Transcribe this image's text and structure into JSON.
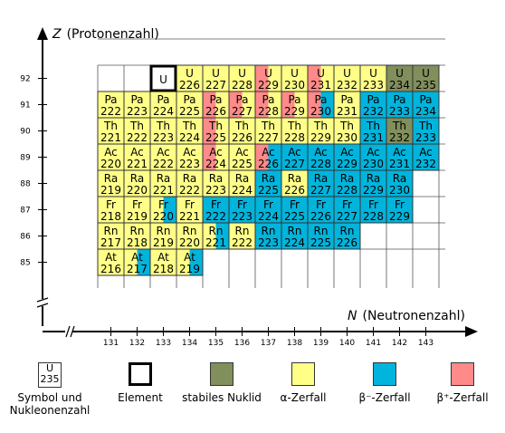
{
  "axes": {
    "y_title_symbol": "Z",
    "y_title_text": "(Protonenzahl)",
    "x_title_symbol": "N",
    "x_title_text": "(Neutronenzahl)",
    "x_ticks": [
      "131",
      "132",
      "133",
      "134",
      "135",
      "136",
      "137",
      "138",
      "139",
      "140",
      "141",
      "142",
      "143"
    ],
    "y_ticks": [
      "92",
      "91",
      "90",
      "89",
      "88",
      "87",
      "86",
      "85"
    ]
  },
  "colors": {
    "stable": "#808f5c",
    "alpha": "#ffff88",
    "beta_minus": "#00b4dc",
    "beta_plus": "#ff8a8a",
    "axis": "#000000"
  },
  "chart_data": {
    "type": "table",
    "rows": [
      {
        "z": 92,
        "symbol": "U",
        "cells": [
          {
            "n": 134,
            "mass": "226",
            "decay": [
              "alpha"
            ]
          },
          {
            "n": 135,
            "mass": "227",
            "decay": [
              "alpha"
            ]
          },
          {
            "n": 136,
            "mass": "228",
            "decay": [
              "alpha"
            ]
          },
          {
            "n": 137,
            "mass": "229",
            "decay": [
              "beta_plus",
              "alpha"
            ]
          },
          {
            "n": 138,
            "mass": "230",
            "decay": [
              "alpha"
            ]
          },
          {
            "n": 139,
            "mass": "231",
            "decay": [
              "beta_plus",
              "alpha"
            ]
          },
          {
            "n": 140,
            "mass": "232",
            "decay": [
              "alpha"
            ]
          },
          {
            "n": 141,
            "mass": "233",
            "decay": [
              "alpha"
            ]
          },
          {
            "n": 142,
            "mass": "234",
            "decay": [
              "stable"
            ]
          },
          {
            "n": 143,
            "mass": "235",
            "decay": [
              "stable"
            ]
          }
        ]
      },
      {
        "z": 91,
        "symbol": "Pa",
        "cells": [
          {
            "n": 131,
            "mass": "222",
            "decay": [
              "alpha"
            ]
          },
          {
            "n": 132,
            "mass": "223",
            "decay": [
              "alpha"
            ]
          },
          {
            "n": 133,
            "mass": "224",
            "decay": [
              "alpha"
            ]
          },
          {
            "n": 134,
            "mass": "225",
            "decay": [
              "alpha"
            ]
          },
          {
            "n": 135,
            "mass": "226",
            "decay": [
              "beta_plus",
              "alpha"
            ]
          },
          {
            "n": 136,
            "mass": "227",
            "decay": [
              "beta_plus",
              "alpha"
            ]
          },
          {
            "n": 137,
            "mass": "228",
            "decay": [
              "beta_plus",
              "alpha"
            ]
          },
          {
            "n": 138,
            "mass": "229",
            "decay": [
              "beta_plus",
              "alpha"
            ]
          },
          {
            "n": 139,
            "mass": "230",
            "decay": [
              "beta_plus",
              "beta_minus"
            ]
          },
          {
            "n": 140,
            "mass": "231",
            "decay": [
              "alpha"
            ]
          },
          {
            "n": 141,
            "mass": "232",
            "decay": [
              "beta_minus"
            ]
          },
          {
            "n": 142,
            "mass": "233",
            "decay": [
              "beta_minus"
            ]
          },
          {
            "n": 143,
            "mass": "234",
            "decay": [
              "beta_minus"
            ]
          }
        ]
      },
      {
        "z": 90,
        "symbol": "Th",
        "cells": [
          {
            "n": 131,
            "mass": "221",
            "decay": [
              "alpha"
            ]
          },
          {
            "n": 132,
            "mass": "222",
            "decay": [
              "alpha"
            ]
          },
          {
            "n": 133,
            "mass": "223",
            "decay": [
              "alpha"
            ]
          },
          {
            "n": 134,
            "mass": "224",
            "decay": [
              "alpha"
            ]
          },
          {
            "n": 135,
            "mass": "225",
            "decay": [
              "beta_plus",
              "alpha"
            ]
          },
          {
            "n": 136,
            "mass": "226",
            "decay": [
              "alpha"
            ]
          },
          {
            "n": 137,
            "mass": "227",
            "decay": [
              "alpha"
            ]
          },
          {
            "n": 138,
            "mass": "228",
            "decay": [
              "alpha"
            ]
          },
          {
            "n": 139,
            "mass": "229",
            "decay": [
              "alpha"
            ]
          },
          {
            "n": 140,
            "mass": "230",
            "decay": [
              "alpha"
            ]
          },
          {
            "n": 141,
            "mass": "231",
            "decay": [
              "beta_minus"
            ]
          },
          {
            "n": 142,
            "mass": "232",
            "decay": [
              "stable"
            ]
          },
          {
            "n": 143,
            "mass": "233",
            "decay": [
              "beta_minus"
            ]
          }
        ]
      },
      {
        "z": 89,
        "symbol": "Ac",
        "cells": [
          {
            "n": 131,
            "mass": "220",
            "decay": [
              "alpha"
            ]
          },
          {
            "n": 132,
            "mass": "221",
            "decay": [
              "alpha"
            ]
          },
          {
            "n": 133,
            "mass": "222",
            "decay": [
              "alpha"
            ]
          },
          {
            "n": 134,
            "mass": "223",
            "decay": [
              "alpha"
            ]
          },
          {
            "n": 135,
            "mass": "224",
            "decay": [
              "beta_plus",
              "alpha"
            ]
          },
          {
            "n": 136,
            "mass": "225",
            "decay": [
              "alpha"
            ]
          },
          {
            "n": 137,
            "mass": "226",
            "decay": [
              "beta_plus",
              "beta_minus"
            ]
          },
          {
            "n": 138,
            "mass": "227",
            "decay": [
              "beta_minus"
            ]
          },
          {
            "n": 139,
            "mass": "228",
            "decay": [
              "beta_minus"
            ]
          },
          {
            "n": 140,
            "mass": "229",
            "decay": [
              "beta_minus"
            ]
          },
          {
            "n": 141,
            "mass": "230",
            "decay": [
              "beta_minus"
            ]
          },
          {
            "n": 142,
            "mass": "231",
            "decay": [
              "beta_minus"
            ]
          },
          {
            "n": 143,
            "mass": "232",
            "decay": [
              "beta_minus"
            ]
          }
        ]
      },
      {
        "z": 88,
        "symbol": "Ra",
        "cells": [
          {
            "n": 131,
            "mass": "219",
            "decay": [
              "alpha"
            ]
          },
          {
            "n": 132,
            "mass": "220",
            "decay": [
              "alpha"
            ]
          },
          {
            "n": 133,
            "mass": "221",
            "decay": [
              "alpha"
            ]
          },
          {
            "n": 134,
            "mass": "222",
            "decay": [
              "alpha"
            ]
          },
          {
            "n": 135,
            "mass": "223",
            "decay": [
              "alpha"
            ]
          },
          {
            "n": 136,
            "mass": "224",
            "decay": [
              "alpha"
            ]
          },
          {
            "n": 137,
            "mass": "225",
            "decay": [
              "beta_minus"
            ]
          },
          {
            "n": 138,
            "mass": "226",
            "decay": [
              "alpha"
            ]
          },
          {
            "n": 139,
            "mass": "227",
            "decay": [
              "beta_minus"
            ]
          },
          {
            "n": 140,
            "mass": "228",
            "decay": [
              "beta_minus"
            ]
          },
          {
            "n": 141,
            "mass": "229",
            "decay": [
              "beta_minus"
            ]
          },
          {
            "n": 142,
            "mass": "230",
            "decay": [
              "beta_minus"
            ]
          }
        ]
      },
      {
        "z": 87,
        "symbol": "Fr",
        "cells": [
          {
            "n": 131,
            "mass": "218",
            "decay": [
              "alpha"
            ]
          },
          {
            "n": 132,
            "mass": "219",
            "decay": [
              "alpha"
            ]
          },
          {
            "n": 133,
            "mass": "220",
            "decay": [
              "alpha",
              "beta_minus"
            ]
          },
          {
            "n": 134,
            "mass": "221",
            "decay": [
              "alpha"
            ]
          },
          {
            "n": 135,
            "mass": "222",
            "decay": [
              "beta_minus"
            ]
          },
          {
            "n": 136,
            "mass": "223",
            "decay": [
              "beta_minus"
            ]
          },
          {
            "n": 137,
            "mass": "224",
            "decay": [
              "beta_minus"
            ]
          },
          {
            "n": 138,
            "mass": "225",
            "decay": [
              "beta_minus"
            ]
          },
          {
            "n": 139,
            "mass": "226",
            "decay": [
              "beta_minus"
            ]
          },
          {
            "n": 140,
            "mass": "227",
            "decay": [
              "beta_minus"
            ]
          },
          {
            "n": 141,
            "mass": "228",
            "decay": [
              "beta_minus"
            ]
          },
          {
            "n": 142,
            "mass": "229",
            "decay": [
              "beta_minus"
            ]
          }
        ]
      },
      {
        "z": 86,
        "symbol": "Rn",
        "cells": [
          {
            "n": 131,
            "mass": "217",
            "decay": [
              "alpha"
            ]
          },
          {
            "n": 132,
            "mass": "218",
            "decay": [
              "alpha"
            ]
          },
          {
            "n": 133,
            "mass": "219",
            "decay": [
              "alpha"
            ]
          },
          {
            "n": 134,
            "mass": "220",
            "decay": [
              "alpha"
            ]
          },
          {
            "n": 135,
            "mass": "221",
            "decay": [
              "alpha",
              "beta_minus"
            ]
          },
          {
            "n": 136,
            "mass": "222",
            "decay": [
              "alpha"
            ]
          },
          {
            "n": 137,
            "mass": "223",
            "decay": [
              "beta_minus"
            ]
          },
          {
            "n": 138,
            "mass": "224",
            "decay": [
              "beta_minus"
            ]
          },
          {
            "n": 139,
            "mass": "225",
            "decay": [
              "beta_minus"
            ]
          },
          {
            "n": 140,
            "mass": "226",
            "decay": [
              "beta_minus"
            ]
          }
        ]
      },
      {
        "z": 85,
        "symbol": "At",
        "cells": [
          {
            "n": 131,
            "mass": "216",
            "decay": [
              "alpha"
            ]
          },
          {
            "n": 132,
            "mass": "217",
            "decay": [
              "alpha",
              "beta_minus"
            ]
          },
          {
            "n": 133,
            "mass": "218",
            "decay": [
              "alpha"
            ]
          },
          {
            "n": 134,
            "mass": "219",
            "decay": [
              "alpha",
              "beta_minus"
            ]
          }
        ]
      }
    ],
    "element_highlight": {
      "z": 92,
      "n": 133,
      "symbol": "U"
    }
  },
  "legend": {
    "key_symbol": "U",
    "key_mass": "235",
    "key_label_line1": "Symbol und",
    "key_label_line2": "Nukleonenzahl",
    "element_label": "Element",
    "stable_label": "stabiles Nuklid",
    "alpha_label": "α-Zerfall",
    "beta_minus_label": "β⁻-Zerfall",
    "beta_plus_label": "β⁺-Zerfall"
  }
}
